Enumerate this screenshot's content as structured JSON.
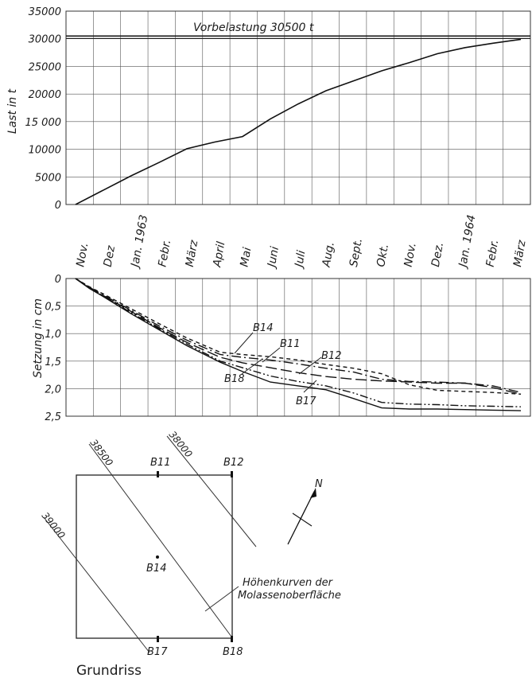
{
  "chart_data": [
    {
      "type": "line",
      "ylabel": "Last in t",
      "ylim": [
        0,
        35000
      ],
      "yticks": [
        "0",
        "5000",
        "10000",
        "15 000",
        "20000",
        "25000",
        "30000",
        "35000"
      ],
      "months": [
        "Nov.",
        "Dez",
        "Jan. 1963",
        "Febr.",
        "März",
        "April",
        "Mai",
        "Juni",
        "Juli",
        "Aug.",
        "Sept.",
        "Okt.",
        "Nov.",
        "Dez.",
        "Jan. 1964",
        "Febr.",
        "März"
      ],
      "grid": true,
      "annotation": "Vorbelastung 30500 t",
      "preload": 30500,
      "series": [
        {
          "x": [
            0,
            1,
            2,
            3,
            4,
            5,
            6,
            7,
            8,
            9,
            10,
            11,
            12,
            13,
            14,
            15,
            16
          ],
          "values": [
            0,
            2600,
            5200,
            7600,
            10100,
            11300,
            12300,
            15500,
            18200,
            20600,
            22400,
            24200,
            25700,
            27300,
            28400,
            29200,
            29900
          ]
        }
      ]
    },
    {
      "type": "line",
      "ylabel": "Setzung in cm",
      "ylim": [
        0,
        2.5
      ],
      "yticks": [
        "0",
        "0,5",
        "1,0",
        "1,5",
        "2,0",
        "2,5"
      ],
      "grid": true,
      "series": [
        {
          "name": "B14",
          "dash": "5,4",
          "x": [
            0,
            0.5,
            1,
            2,
            3,
            4,
            5.2,
            6,
            7,
            8,
            9,
            10,
            11,
            12,
            13,
            14,
            15,
            16
          ],
          "values": [
            0,
            0.15,
            0.28,
            0.55,
            0.82,
            1.08,
            1.34,
            1.38,
            1.42,
            1.48,
            1.56,
            1.63,
            1.73,
            1.93,
            2.03,
            2.05,
            2.07,
            2.1
          ]
        },
        {
          "name": "B11",
          "dash": "12,4,2,4",
          "x": [
            0,
            0.5,
            1,
            2,
            3,
            4,
            5.2,
            6,
            7,
            8,
            9,
            10,
            11,
            12,
            13,
            14,
            15,
            16
          ],
          "values": [
            0,
            0.16,
            0.3,
            0.58,
            0.86,
            1.12,
            1.38,
            1.43,
            1.48,
            1.55,
            1.63,
            1.7,
            1.83,
            1.87,
            1.88,
            1.9,
            1.95,
            2.07
          ]
        },
        {
          "name": "B12",
          "dash": "14,5",
          "x": [
            0,
            0.5,
            1,
            2,
            3,
            4,
            5.2,
            6,
            7,
            8,
            9,
            10,
            11,
            12,
            13,
            14,
            15,
            16
          ],
          "values": [
            0,
            0.17,
            0.31,
            0.6,
            0.89,
            1.16,
            1.43,
            1.53,
            1.62,
            1.71,
            1.78,
            1.83,
            1.86,
            1.88,
            1.9,
            1.9,
            1.98,
            2.1
          ]
        },
        {
          "name": "B18",
          "dash": "",
          "x": [
            0,
            0.5,
            1,
            2,
            3,
            4,
            5.2,
            6,
            7,
            8,
            9,
            10,
            11,
            12,
            13,
            14,
            15,
            16
          ],
          "values": [
            0,
            0.18,
            0.33,
            0.64,
            0.93,
            1.22,
            1.52,
            1.69,
            1.88,
            1.95,
            2.02,
            2.18,
            2.35,
            2.37,
            2.37,
            2.38,
            2.39,
            2.4
          ]
        },
        {
          "name": "B17",
          "dash": "10,3,2,3,2,3",
          "x": [
            0,
            0.5,
            1,
            2,
            3,
            4,
            5.2,
            6,
            7,
            8,
            9,
            10,
            11,
            12,
            13,
            14,
            15,
            16
          ],
          "values": [
            0,
            0.17,
            0.32,
            0.62,
            0.91,
            1.19,
            1.5,
            1.62,
            1.77,
            1.87,
            1.95,
            2.08,
            2.25,
            2.28,
            2.29,
            2.31,
            2.32,
            2.33
          ]
        }
      ]
    }
  ],
  "plan": {
    "contours": [
      "39000",
      "38500",
      "38000"
    ],
    "points": [
      "B11",
      "B12",
      "B14",
      "B17",
      "B18"
    ],
    "north": "N",
    "legend": "Höhenkurven der Molassenoberfläche",
    "legend_line1": "Höhenkurven der",
    "legend_line2": "Molassenoberfläche",
    "title": "Grundriss"
  }
}
